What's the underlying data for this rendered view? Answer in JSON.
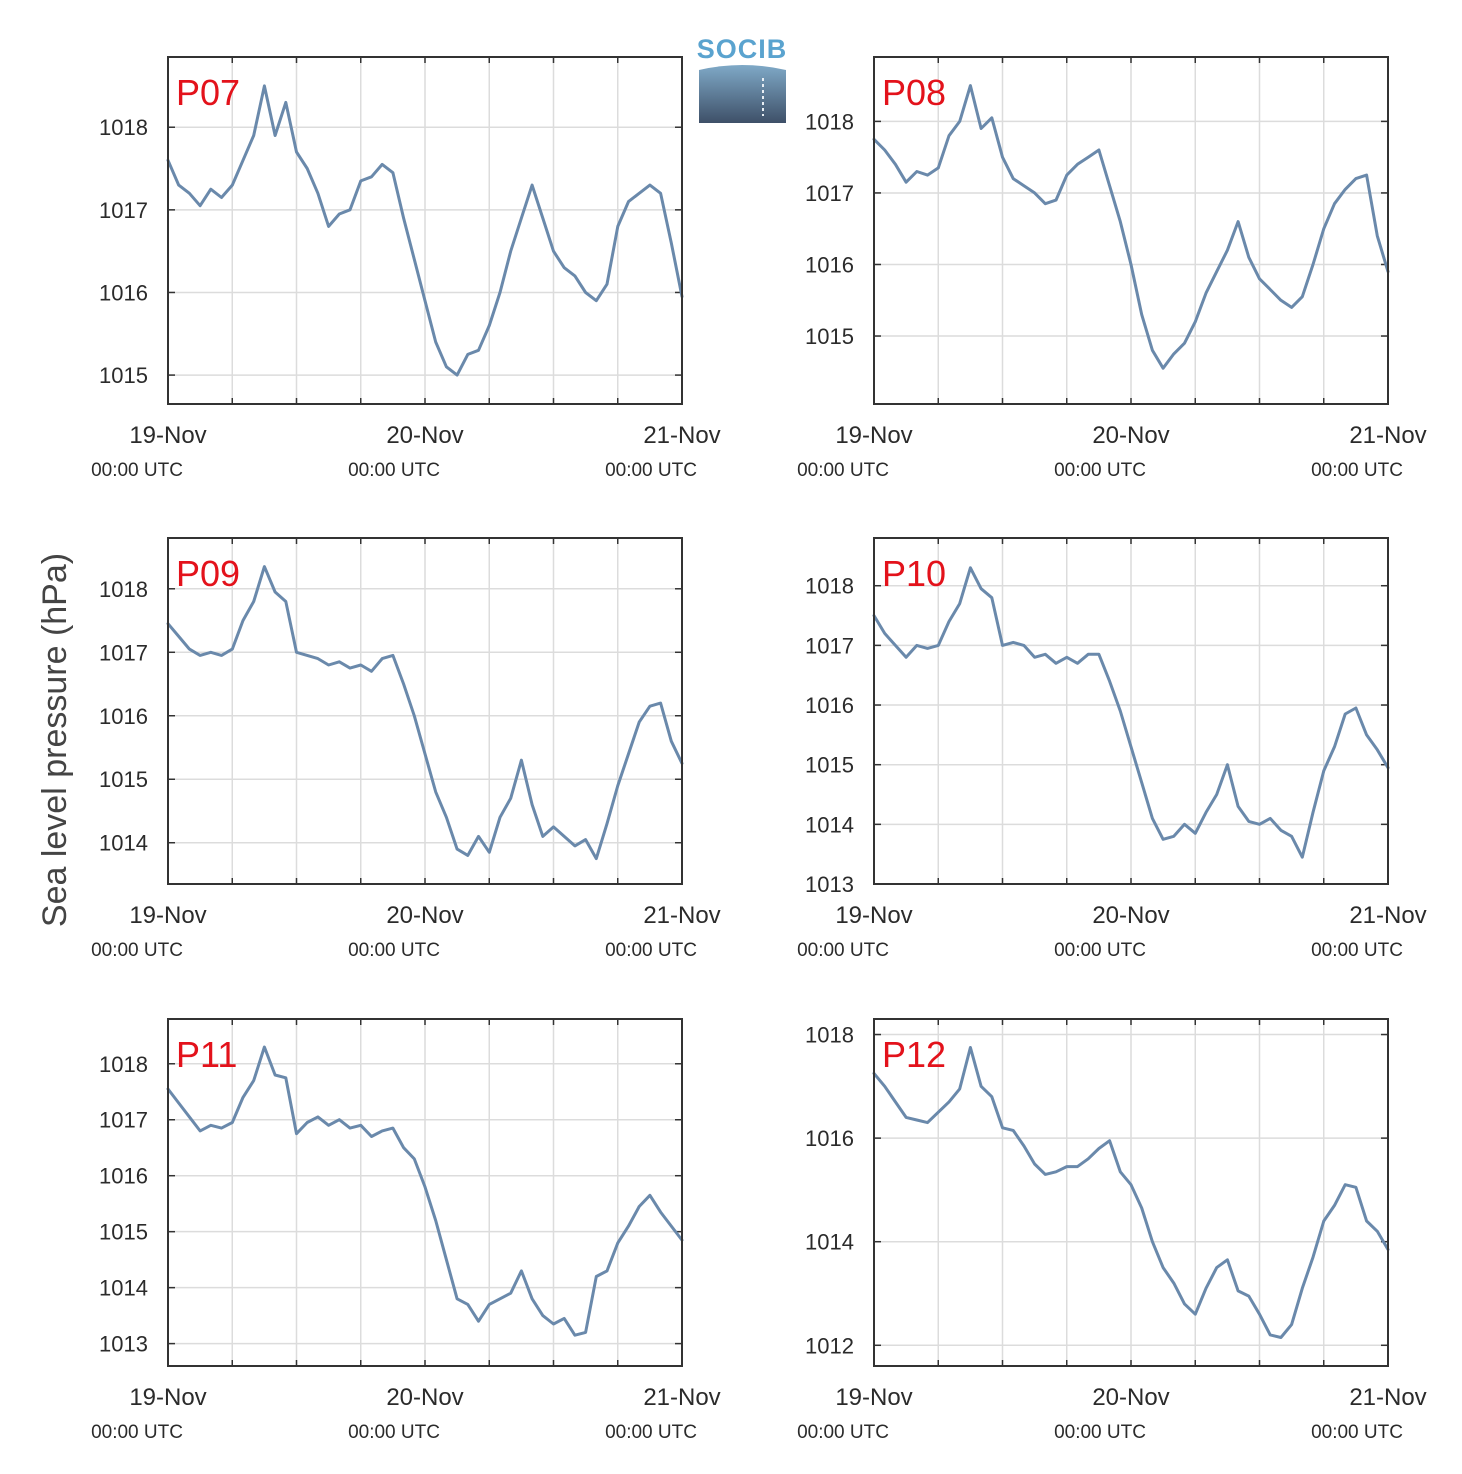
{
  "logo": {
    "text": "SOCIB"
  },
  "ylabel": "Sea level pressure (hPa)",
  "colors": {
    "line": "#6a89ab",
    "label": "#e3121b",
    "grid": "#dcdcdc",
    "axis": "#333333"
  },
  "chart_data": [
    {
      "type": "line",
      "label": "P07",
      "x_ticks": [
        {
          "date": "19-Nov",
          "time": "00:00 UTC"
        },
        {
          "date": "20-Nov",
          "time": "00:00 UTC"
        },
        {
          "date": "21-Nov",
          "time": "00:00 UTC"
        }
      ],
      "xlim_hours": [
        0,
        48
      ],
      "ylim": [
        1014.65,
        1018.85
      ],
      "yticks": [
        1015,
        1016,
        1017,
        1018
      ],
      "grid": true,
      "x": [
        0,
        1,
        2,
        3,
        4,
        5,
        6,
        7,
        8,
        9,
        10,
        11,
        12,
        13,
        14,
        15,
        16,
        17,
        18,
        19,
        20,
        21,
        22,
        23,
        24,
        25,
        26,
        27,
        28,
        29,
        30,
        31,
        32,
        33,
        34,
        35,
        36,
        37,
        38,
        39,
        40,
        41,
        42,
        43,
        44,
        45,
        46,
        47,
        48
      ],
      "y": [
        1017.6,
        1017.3,
        1017.2,
        1017.05,
        1017.25,
        1017.15,
        1017.3,
        1017.6,
        1017.9,
        1018.5,
        1017.9,
        1018.3,
        1017.7,
        1017.5,
        1017.2,
        1016.8,
        1016.95,
        1017.0,
        1017.35,
        1017.4,
        1017.55,
        1017.45,
        1016.9,
        1016.4,
        1015.9,
        1015.4,
        1015.1,
        1015.0,
        1015.25,
        1015.3,
        1015.6,
        1016.0,
        1016.5,
        1016.9,
        1017.3,
        1016.9,
        1016.5,
        1016.3,
        1016.2,
        1016.0,
        1015.9,
        1016.1,
        1016.8,
        1017.1,
        1017.2,
        1017.3,
        1017.2,
        1016.6,
        1015.95
      ]
    },
    {
      "type": "line",
      "label": "P08",
      "x_ticks": [
        {
          "date": "19-Nov",
          "time": "00:00 UTC"
        },
        {
          "date": "20-Nov",
          "time": "00:00 UTC"
        },
        {
          "date": "21-Nov",
          "time": "00:00 UTC"
        }
      ],
      "xlim_hours": [
        0,
        48
      ],
      "ylim": [
        1014.05,
        1018.9
      ],
      "yticks": [
        1015,
        1016,
        1017,
        1018
      ],
      "grid": true,
      "x": [
        0,
        1,
        2,
        3,
        4,
        5,
        6,
        7,
        8,
        9,
        10,
        11,
        12,
        13,
        14,
        15,
        16,
        17,
        18,
        19,
        20,
        21,
        22,
        23,
        24,
        25,
        26,
        27,
        28,
        29,
        30,
        31,
        32,
        33,
        34,
        35,
        36,
        37,
        38,
        39,
        40,
        41,
        42,
        43,
        44,
        45,
        46,
        47,
        48
      ],
      "y": [
        1017.75,
        1017.6,
        1017.4,
        1017.15,
        1017.3,
        1017.25,
        1017.35,
        1017.8,
        1018.0,
        1018.5,
        1017.9,
        1018.05,
        1017.5,
        1017.2,
        1017.1,
        1017.0,
        1016.85,
        1016.9,
        1017.25,
        1017.4,
        1017.5,
        1017.6,
        1017.1,
        1016.6,
        1016.0,
        1015.3,
        1014.8,
        1014.55,
        1014.75,
        1014.9,
        1015.2,
        1015.6,
        1015.9,
        1016.2,
        1016.6,
        1016.1,
        1015.8,
        1015.65,
        1015.5,
        1015.4,
        1015.55,
        1016.0,
        1016.5,
        1016.85,
        1017.05,
        1017.2,
        1017.25,
        1016.4,
        1015.9
      ]
    },
    {
      "type": "line",
      "label": "P09",
      "x_ticks": [
        {
          "date": "19-Nov",
          "time": "00:00 UTC"
        },
        {
          "date": "20-Nov",
          "time": "00:00 UTC"
        },
        {
          "date": "21-Nov",
          "time": "00:00 UTC"
        }
      ],
      "xlim_hours": [
        0,
        48
      ],
      "ylim": [
        1013.35,
        1018.8
      ],
      "yticks": [
        1014,
        1015,
        1016,
        1017,
        1018
      ],
      "grid": true,
      "x": [
        0,
        1,
        2,
        3,
        4,
        5,
        6,
        7,
        8,
        9,
        10,
        11,
        12,
        13,
        14,
        15,
        16,
        17,
        18,
        19,
        20,
        21,
        22,
        23,
        24,
        25,
        26,
        27,
        28,
        29,
        30,
        31,
        32,
        33,
        34,
        35,
        36,
        37,
        38,
        39,
        40,
        41,
        42,
        43,
        44,
        45,
        46,
        47,
        48
      ],
      "y": [
        1017.45,
        1017.25,
        1017.05,
        1016.95,
        1017.0,
        1016.95,
        1017.05,
        1017.5,
        1017.8,
        1018.35,
        1017.95,
        1017.8,
        1017.0,
        1016.95,
        1016.9,
        1016.8,
        1016.85,
        1016.75,
        1016.8,
        1016.7,
        1016.9,
        1016.95,
        1016.5,
        1016.0,
        1015.4,
        1014.8,
        1014.4,
        1013.9,
        1013.8,
        1014.1,
        1013.85,
        1014.4,
        1014.7,
        1015.3,
        1014.6,
        1014.1,
        1014.25,
        1014.1,
        1013.95,
        1014.05,
        1013.75,
        1014.3,
        1014.9,
        1015.4,
        1015.9,
        1016.15,
        1016.2,
        1015.6,
        1015.25
      ]
    },
    {
      "type": "line",
      "label": "P10",
      "x_ticks": [
        {
          "date": "19-Nov",
          "time": "00:00 UTC"
        },
        {
          "date": "20-Nov",
          "time": "00:00 UTC"
        },
        {
          "date": "21-Nov",
          "time": "00:00 UTC"
        }
      ],
      "xlim_hours": [
        0,
        48
      ],
      "ylim": [
        1013.0,
        1018.8
      ],
      "yticks": [
        1013,
        1014,
        1015,
        1016,
        1017,
        1018
      ],
      "grid": true,
      "x": [
        0,
        1,
        2,
        3,
        4,
        5,
        6,
        7,
        8,
        9,
        10,
        11,
        12,
        13,
        14,
        15,
        16,
        17,
        18,
        19,
        20,
        21,
        22,
        23,
        24,
        25,
        26,
        27,
        28,
        29,
        30,
        31,
        32,
        33,
        34,
        35,
        36,
        37,
        38,
        39,
        40,
        41,
        42,
        43,
        44,
        45,
        46,
        47,
        48
      ],
      "y": [
        1017.5,
        1017.2,
        1017.0,
        1016.8,
        1017.0,
        1016.95,
        1017.0,
        1017.4,
        1017.7,
        1018.3,
        1017.95,
        1017.8,
        1017.0,
        1017.05,
        1017.0,
        1016.8,
        1016.85,
        1016.7,
        1016.8,
        1016.7,
        1016.85,
        1016.85,
        1016.4,
        1015.9,
        1015.3,
        1014.7,
        1014.1,
        1013.75,
        1013.8,
        1014.0,
        1013.85,
        1014.2,
        1014.5,
        1015.0,
        1014.3,
        1014.05,
        1014.0,
        1014.1,
        1013.9,
        1013.8,
        1013.45,
        1014.2,
        1014.9,
        1015.3,
        1015.85,
        1015.95,
        1015.5,
        1015.25,
        1014.95
      ]
    },
    {
      "type": "line",
      "label": "P11",
      "x_ticks": [
        {
          "date": "19-Nov",
          "time": "00:00 UTC"
        },
        {
          "date": "20-Nov",
          "time": "00:00 UTC"
        },
        {
          "date": "21-Nov",
          "time": "00:00 UTC"
        }
      ],
      "xlim_hours": [
        0,
        48
      ],
      "ylim": [
        1012.6,
        1018.8
      ],
      "yticks": [
        1013,
        1014,
        1015,
        1016,
        1017,
        1018
      ],
      "grid": true,
      "x": [
        0,
        1,
        2,
        3,
        4,
        5,
        6,
        7,
        8,
        9,
        10,
        11,
        12,
        13,
        14,
        15,
        16,
        17,
        18,
        19,
        20,
        21,
        22,
        23,
        24,
        25,
        26,
        27,
        28,
        29,
        30,
        31,
        32,
        33,
        34,
        35,
        36,
        37,
        38,
        39,
        40,
        41,
        42,
        43,
        44,
        45,
        46,
        47,
        48
      ],
      "y": [
        1017.55,
        1017.3,
        1017.05,
        1016.8,
        1016.9,
        1016.85,
        1016.95,
        1017.4,
        1017.7,
        1018.3,
        1017.8,
        1017.75,
        1016.75,
        1016.95,
        1017.05,
        1016.9,
        1017.0,
        1016.85,
        1016.9,
        1016.7,
        1016.8,
        1016.85,
        1016.5,
        1016.3,
        1015.8,
        1015.2,
        1014.5,
        1013.8,
        1013.7,
        1013.4,
        1013.7,
        1013.8,
        1013.9,
        1014.3,
        1013.8,
        1013.5,
        1013.35,
        1013.45,
        1013.15,
        1013.2,
        1014.2,
        1014.3,
        1014.8,
        1015.1,
        1015.45,
        1015.65,
        1015.35,
        1015.1,
        1014.85
      ]
    },
    {
      "type": "line",
      "label": "P12",
      "x_ticks": [
        {
          "date": "19-Nov",
          "time": "00:00 UTC"
        },
        {
          "date": "20-Nov",
          "time": "00:00 UTC"
        },
        {
          "date": "21-Nov",
          "time": "00:00 UTC"
        }
      ],
      "xlim_hours": [
        0,
        48
      ],
      "ylim": [
        1011.6,
        1018.3
      ],
      "yticks": [
        1012,
        1014,
        1016,
        1018
      ],
      "grid": true,
      "x": [
        0,
        1,
        2,
        3,
        4,
        5,
        6,
        7,
        8,
        9,
        10,
        11,
        12,
        13,
        14,
        15,
        16,
        17,
        18,
        19,
        20,
        21,
        22,
        23,
        24,
        25,
        26,
        27,
        28,
        29,
        30,
        31,
        32,
        33,
        34,
        35,
        36,
        37,
        38,
        39,
        40,
        41,
        42,
        43,
        44,
        45,
        46,
        47,
        48
      ],
      "y": [
        1017.25,
        1017.0,
        1016.7,
        1016.4,
        1016.35,
        1016.3,
        1016.5,
        1016.7,
        1016.95,
        1017.75,
        1017.0,
        1016.8,
        1016.2,
        1016.15,
        1015.85,
        1015.5,
        1015.3,
        1015.35,
        1015.45,
        1015.45,
        1015.6,
        1015.8,
        1015.95,
        1015.35,
        1015.1,
        1014.65,
        1014.0,
        1013.5,
        1013.2,
        1012.8,
        1012.6,
        1013.1,
        1013.5,
        1013.65,
        1013.05,
        1012.95,
        1012.6,
        1012.2,
        1012.15,
        1012.4,
        1013.1,
        1013.7,
        1014.4,
        1014.7,
        1015.1,
        1015.05,
        1014.4,
        1014.2,
        1013.85
      ]
    }
  ]
}
